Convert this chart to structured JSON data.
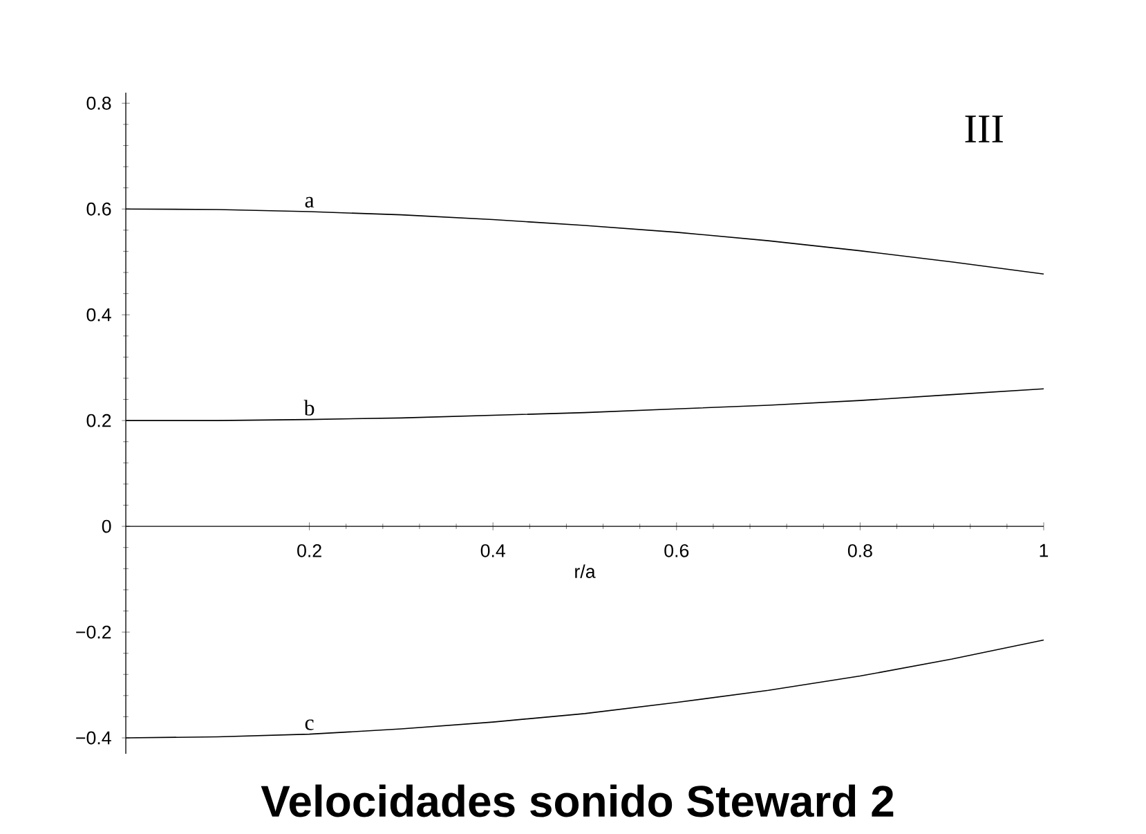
{
  "chart_data": {
    "type": "line",
    "title": "Velocidades sonido Steward 2",
    "xlabel": "r/a",
    "annotations": [
      "III"
    ],
    "x": [
      0,
      0.1,
      0.2,
      0.3,
      0.4,
      0.5,
      0.6,
      0.7,
      0.8,
      0.9,
      1
    ],
    "series": [
      {
        "name": "a",
        "color": "#000000",
        "values": [
          0.6,
          0.599,
          0.595,
          0.589,
          0.58,
          0.569,
          0.556,
          0.54,
          0.521,
          0.5,
          0.477
        ]
      },
      {
        "name": "b",
        "color": "#000000",
        "values": [
          0.2,
          0.2,
          0.202,
          0.205,
          0.21,
          0.215,
          0.222,
          0.229,
          0.238,
          0.249,
          0.26
        ]
      },
      {
        "name": "c",
        "color": "#000000",
        "values": [
          -0.4,
          -0.398,
          -0.393,
          -0.383,
          -0.37,
          -0.354,
          -0.333,
          -0.31,
          -0.283,
          -0.251,
          -0.215
        ]
      }
    ],
    "xlim": [
      0,
      1
    ],
    "ylim": [
      -0.43,
      0.82
    ],
    "xticks": [
      0.2,
      0.4,
      0.6,
      0.8,
      1
    ],
    "yticks": [
      {
        "value": -0.4,
        "label": "−0.4"
      },
      {
        "value": -0.2,
        "label": "−0.2"
      },
      0,
      0.2,
      0.4,
      0.6,
      0.8
    ],
    "grid": false,
    "legend": false,
    "marker": "none",
    "line_style": "solid"
  }
}
